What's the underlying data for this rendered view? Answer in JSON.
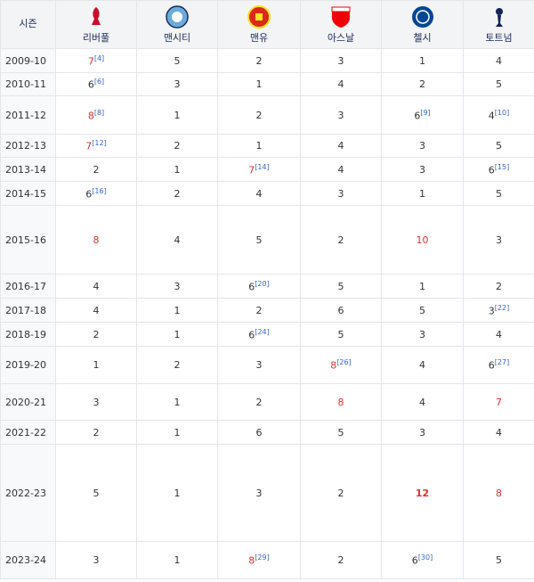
{
  "table": {
    "header": [
      "시즌",
      "리버풀",
      "맨시티",
      "맨유",
      "아스날",
      "첼시",
      "토트넘"
    ],
    "rows": [
      [
        {
          "text": "2009-10"
        },
        {
          "text": "7",
          "note": "[4]",
          "red": true
        },
        {
          "text": "5"
        },
        {
          "text": "2"
        },
        {
          "text": "3"
        },
        {
          "text": "1"
        },
        {
          "text": "4"
        }
      ],
      [
        {
          "text": "2010-11"
        },
        {
          "text": "6",
          "note": "[6]"
        },
        {
          "text": "3"
        },
        {
          "text": "1"
        },
        {
          "text": "4"
        },
        {
          "text": "2"
        },
        {
          "text": "5"
        }
      ],
      [
        {
          "text": "2011-12"
        },
        {
          "text": "8",
          "note": "[8]",
          "red": true
        },
        {
          "text": "1"
        },
        {
          "text": "2"
        },
        {
          "text": "3"
        },
        {
          "text": "6",
          "note": "[9]"
        },
        {
          "text": "4",
          "note": "[10]"
        }
      ],
      [
        {
          "text": "2012-13"
        },
        {
          "text": "7",
          "note": "[12]",
          "red": true
        },
        {
          "text": "2"
        },
        {
          "text": "1"
        },
        {
          "text": "4"
        },
        {
          "text": "3"
        },
        {
          "text": "5"
        }
      ],
      [
        {
          "text": "2013-14"
        },
        {
          "text": "2"
        },
        {
          "text": "1"
        },
        {
          "text": "7",
          "note": "[14]",
          "red": true
        },
        {
          "text": "4"
        },
        {
          "text": "3"
        },
        {
          "text": "6",
          "note": "[15]"
        }
      ],
      [
        {
          "text": "2014-15"
        },
        {
          "text": "6",
          "note": "[16]"
        },
        {
          "text": "2"
        },
        {
          "text": "4"
        },
        {
          "text": "3"
        },
        {
          "text": "1"
        },
        {
          "text": "5"
        }
      ],
      [
        {
          "text": "2015-16"
        },
        {
          "text": "8",
          "red": true
        },
        {
          "text": "4"
        },
        {
          "text": "5"
        },
        {
          "text": "2"
        },
        {
          "text": "10",
          "red": true
        },
        {
          "text": "3"
        }
      ],
      [
        {
          "text": "2016-17"
        },
        {
          "text": "4"
        },
        {
          "text": "3"
        },
        {
          "text": "6",
          "note": "[20]"
        },
        {
          "text": "5"
        },
        {
          "text": "1"
        },
        {
          "text": "2"
        }
      ],
      [
        {
          "text": "2017-18"
        },
        {
          "text": "4"
        },
        {
          "text": "1"
        },
        {
          "text": "2"
        },
        {
          "text": "6"
        },
        {
          "text": "5"
        },
        {
          "text": "3",
          "note": "[22]"
        }
      ],
      [
        {
          "text": "2018-19"
        },
        {
          "text": "2"
        },
        {
          "text": "1"
        },
        {
          "text": "6",
          "note": "[24]"
        },
        {
          "text": "5"
        },
        {
          "text": "3"
        },
        {
          "text": "4"
        }
      ],
      [
        {
          "text": "2019-20"
        },
        {
          "text": "1"
        },
        {
          "text": "2"
        },
        {
          "text": "3"
        },
        {
          "text": "8",
          "note": "[26]",
          "red": true
        },
        {
          "text": "4"
        },
        {
          "text": "6",
          "note": "[27]"
        }
      ],
      [
        {
          "text": "2020-21"
        },
        {
          "text": "3"
        },
        {
          "text": "1"
        },
        {
          "text": "2"
        },
        {
          "text": "8",
          "red": true
        },
        {
          "text": "4"
        },
        {
          "text": "7",
          "red": true
        }
      ],
      [
        {
          "text": "2021-22"
        },
        {
          "text": "2"
        },
        {
          "text": "1"
        },
        {
          "text": "6"
        },
        {
          "text": "5"
        },
        {
          "text": "3"
        },
        {
          "text": "4"
        }
      ],
      [
        {
          "text": "2022-23"
        },
        {
          "text": "5"
        },
        {
          "text": "1"
        },
        {
          "text": "3"
        },
        {
          "text": "2"
        },
        {
          "text": "12",
          "red": true,
          "bold": true
        },
        {
          "text": "8",
          "red": true
        }
      ],
      [
        {
          "text": "2023-24"
        },
        {
          "text": "3"
        },
        {
          "text": "1"
        },
        {
          "text": "8",
          "note": "[29]",
          "red": true
        },
        {
          "text": "2"
        },
        {
          "text": "6",
          "note": "[30]"
        },
        {
          "text": "5"
        }
      ]
    ]
  }
}
